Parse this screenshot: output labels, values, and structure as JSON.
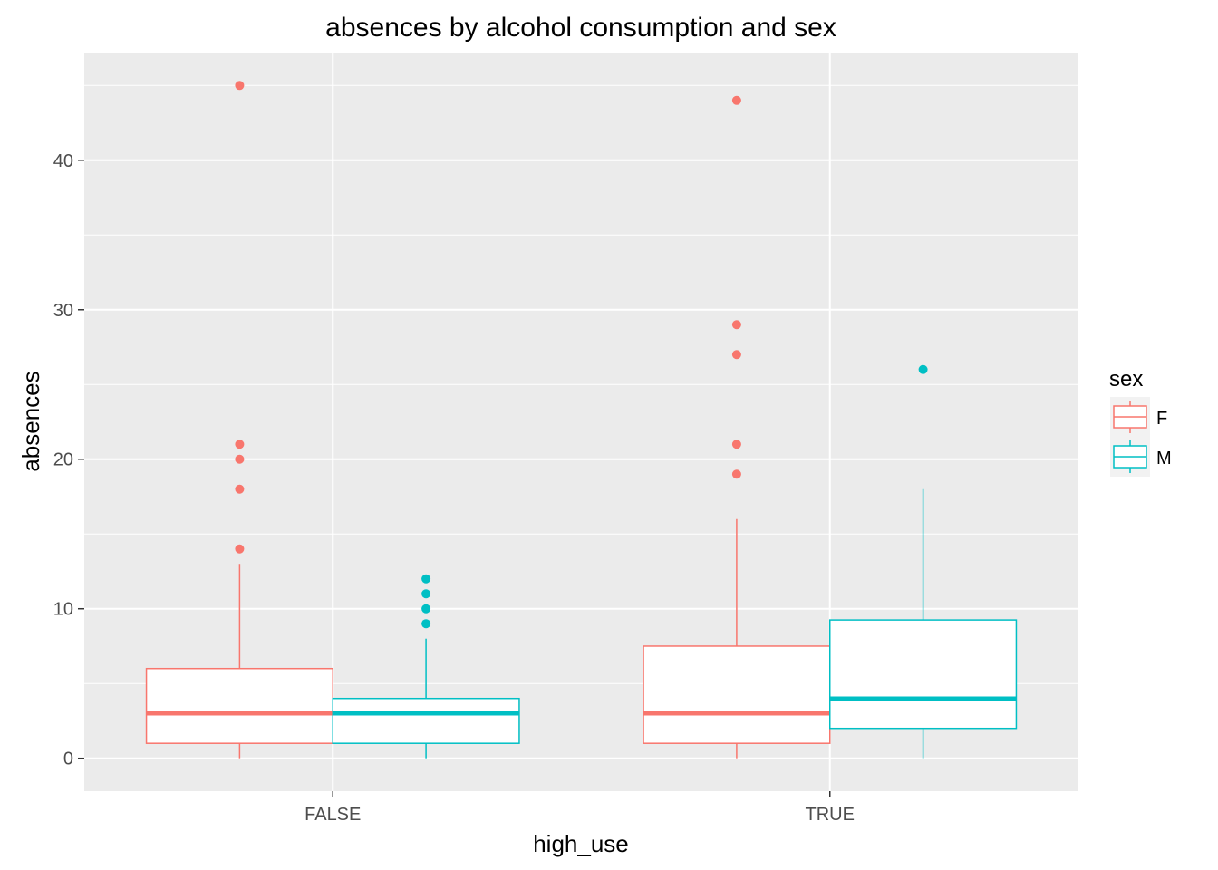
{
  "chart_data": {
    "type": "boxplot",
    "title": "absences by alcohol consumption and sex",
    "xlabel": "high_use",
    "ylabel": "absences",
    "categories": [
      "FALSE",
      "TRUE"
    ],
    "y_ticks": [
      0,
      10,
      20,
      30,
      40
    ],
    "y_tick_labels": [
      "0",
      "10",
      "20",
      "30",
      "40"
    ],
    "ylim": [
      -2.2,
      47.2
    ],
    "grid": true,
    "panel_background": "#EBEBEB",
    "legend": {
      "title": "sex",
      "placement": "right",
      "entries": [
        "F",
        "M"
      ]
    },
    "series": [
      {
        "name": "F",
        "color": "#F8766D",
        "boxes": [
          {
            "category": "FALSE",
            "whisker_low": 0,
            "q1": 1,
            "median": 3,
            "q3": 6,
            "whisker_high": 13,
            "outliers": [
              14,
              18,
              20,
              21,
              45
            ]
          },
          {
            "category": "TRUE",
            "whisker_low": 0,
            "q1": 1,
            "median": 3,
            "q3": 7.5,
            "whisker_high": 16,
            "outliers": [
              19,
              21,
              27,
              29,
              44
            ]
          }
        ]
      },
      {
        "name": "M",
        "color": "#00BFC4",
        "boxes": [
          {
            "category": "FALSE",
            "whisker_low": 0,
            "q1": 1,
            "median": 3,
            "q3": 4,
            "whisker_high": 8,
            "outliers": [
              9,
              10,
              11,
              12
            ]
          },
          {
            "category": "TRUE",
            "whisker_low": 0,
            "q1": 2,
            "median": 4,
            "q3": 9.25,
            "whisker_high": 18,
            "outliers": [
              26
            ]
          }
        ]
      }
    ]
  }
}
